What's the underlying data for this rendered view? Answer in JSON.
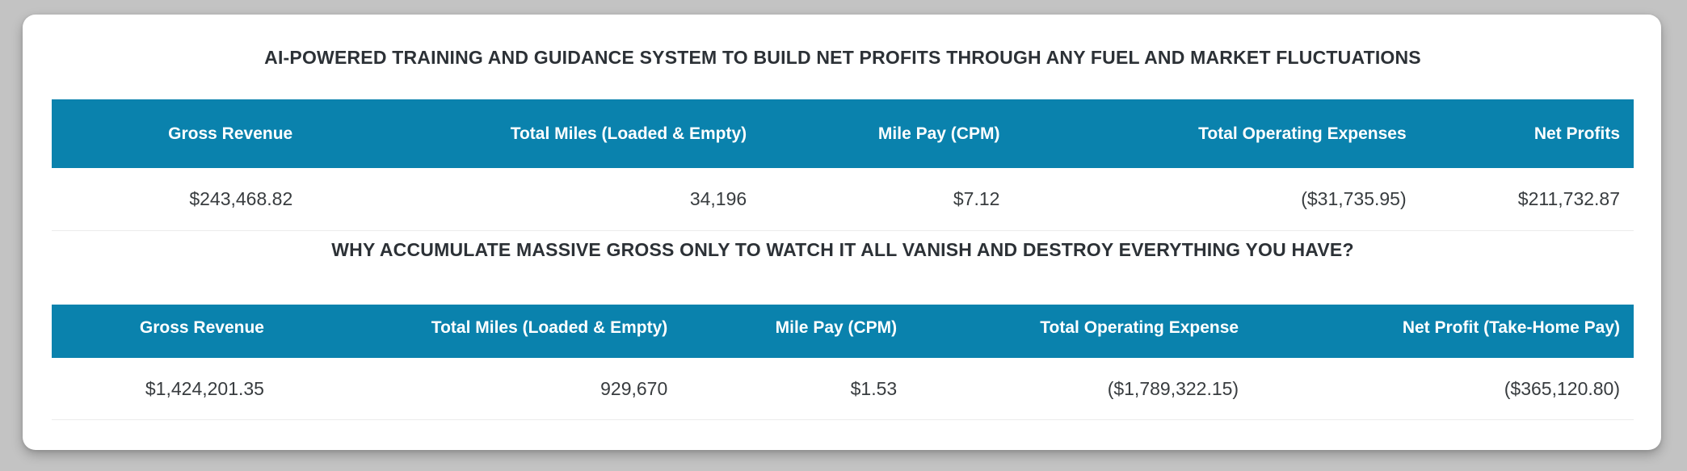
{
  "page": {
    "background": "#c3c3c3",
    "card_background": "#ffffff"
  },
  "colors": {
    "header_bg": "#0a82ad",
    "header_text": "#ffffff",
    "title_text": "#2c3136",
    "cell_text": "#383c3f",
    "divider": "#ececec"
  },
  "section1": {
    "title": "AI-POWERED TRAINING AND GUIDANCE SYSTEM TO BUILD NET PROFITS THROUGH ANY FUEL AND MARKET FLUCTUATIONS",
    "table": {
      "columns": [
        "Gross Revenue",
        "Total Miles (Loaded & Empty)",
        "Mile Pay (CPM)",
        "Total Operating Expenses",
        "Net Profits"
      ],
      "col_widths_pct": [
        16.1,
        28.7,
        16.0,
        25.7,
        13.5
      ],
      "rows": [
        [
          "$243,468.82",
          "34,196",
          "$7.12",
          "($31,735.95)",
          "$211,732.87"
        ]
      ]
    }
  },
  "section2": {
    "title": "WHY ACCUMULATE MASSIVE GROSS ONLY TO WATCH IT ALL VANISH AND DESTROY EVERYTHING YOU HAVE?",
    "table": {
      "columns": [
        "Gross Revenue",
        "Total Miles (Loaded & Empty)",
        "Mile Pay (CPM)",
        "Total Operating Expense",
        "Net Profit (Take-Home Pay)"
      ],
      "col_widths_pct": [
        14.3,
        25.5,
        14.5,
        21.6,
        24.1
      ],
      "rows": [
        [
          "$1,424,201.35",
          "929,670",
          "$1.53",
          "($1,789,322.15)",
          "($365,120.80)"
        ]
      ]
    }
  }
}
